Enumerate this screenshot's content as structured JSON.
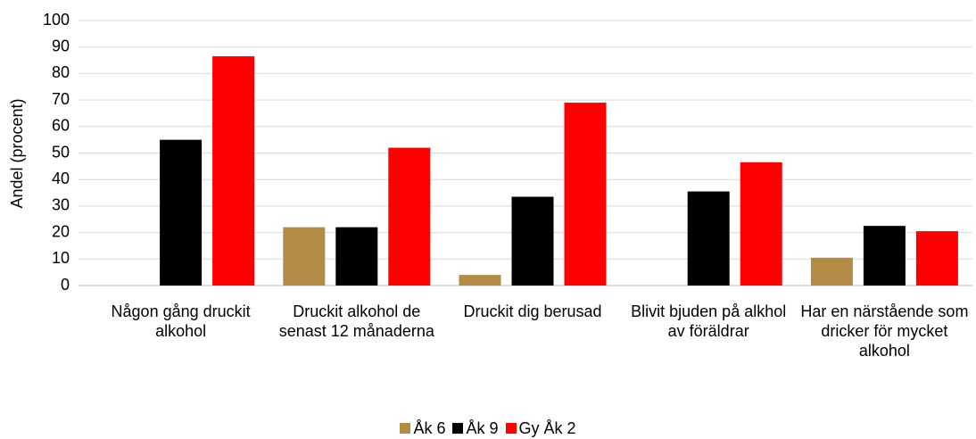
{
  "chart_data": {
    "type": "bar",
    "y_label": "Andel (procent)",
    "categories": [
      "Någon gång druckit alkohol",
      "Druckit alkohol de senast 12 månaderna",
      "Druckit dig berusad",
      "Blivit bjuden på alkhol av föräldrar",
      "Har en närstående som dricker för mycket alkohol"
    ],
    "series": [
      {
        "name": "Åk 6",
        "color": "#b38b45",
        "values": [
          null,
          22,
          4,
          null,
          10.5
        ]
      },
      {
        "name": "Åk 9",
        "color": "#000000",
        "values": [
          55,
          22,
          33.5,
          35.5,
          22.5
        ]
      },
      {
        "name": "Gy Åk 2",
        "color": "#ff0000",
        "values": [
          86.5,
          52,
          69,
          46.5,
          20.5
        ]
      }
    ],
    "ylim": [
      0,
      100
    ],
    "yticks": [
      0,
      10,
      20,
      30,
      40,
      50,
      60,
      70,
      80,
      90,
      100
    ],
    "grid": true,
    "legend": "bottom"
  }
}
